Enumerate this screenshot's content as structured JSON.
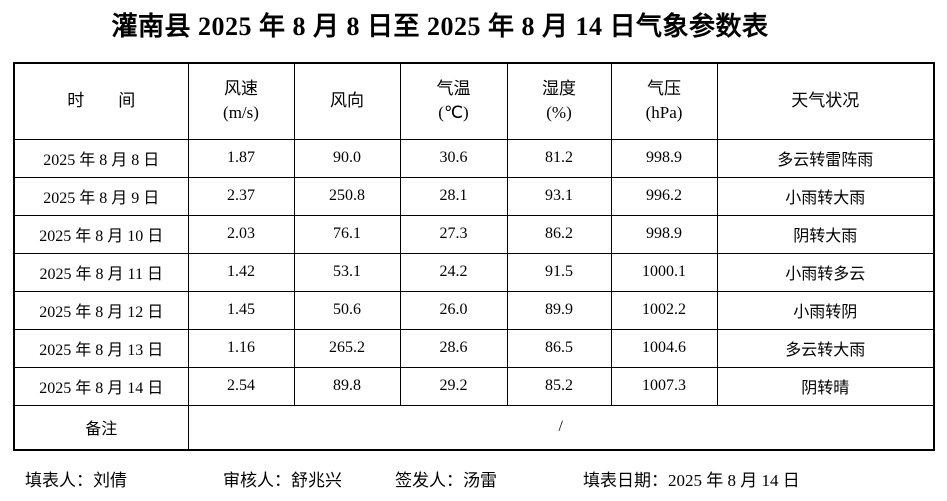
{
  "title": "灌南县 2025 年 8 月 8 日至 2025 年 8 月 14 日气象参数表",
  "table": {
    "columns": [
      {
        "key": "time",
        "line1": "时　　间",
        "line2": ""
      },
      {
        "key": "wind-speed",
        "line1": "风速",
        "line2": "(m/s)"
      },
      {
        "key": "wind-dir",
        "line1": "风向",
        "line2": ""
      },
      {
        "key": "temp",
        "line1": "气温",
        "line2": "(℃)"
      },
      {
        "key": "humidity",
        "line1": "湿度",
        "line2": "(%)"
      },
      {
        "key": "pressure",
        "line1": "气压",
        "line2": "(hPa)"
      },
      {
        "key": "weather",
        "line1": "天气状况",
        "line2": ""
      }
    ],
    "rows": [
      {
        "date": "2025 年 8 月 8 日",
        "wind_speed": "1.87",
        "wind_dir": "90.0",
        "temp": "30.6",
        "humidity": "81.2",
        "pressure": "998.9",
        "weather": "多云转雷阵雨"
      },
      {
        "date": "2025 年 8 月 9 日",
        "wind_speed": "2.37",
        "wind_dir": "250.8",
        "temp": "28.1",
        "humidity": "93.1",
        "pressure": "996.2",
        "weather": "小雨转大雨"
      },
      {
        "date": "2025 年 8 月 10 日",
        "wind_speed": "2.03",
        "wind_dir": "76.1",
        "temp": "27.3",
        "humidity": "86.2",
        "pressure": "998.9",
        "weather": "阴转大雨"
      },
      {
        "date": "2025 年 8 月 11 日",
        "wind_speed": "1.42",
        "wind_dir": "53.1",
        "temp": "24.2",
        "humidity": "91.5",
        "pressure": "1000.1",
        "weather": "小雨转多云"
      },
      {
        "date": "2025 年 8 月 12 日",
        "wind_speed": "1.45",
        "wind_dir": "50.6",
        "temp": "26.0",
        "humidity": "89.9",
        "pressure": "1002.2",
        "weather": "小雨转阴"
      },
      {
        "date": "2025 年 8 月 13 日",
        "wind_speed": "1.16",
        "wind_dir": "265.2",
        "temp": "28.6",
        "humidity": "86.5",
        "pressure": "1004.6",
        "weather": "多云转大雨"
      },
      {
        "date": "2025 年 8 月 14 日",
        "wind_speed": "2.54",
        "wind_dir": "89.8",
        "temp": "29.2",
        "humidity": "85.2",
        "pressure": "1007.3",
        "weather": "阴转晴"
      }
    ],
    "remark_label": "备注",
    "remark_value": "/"
  },
  "footer": {
    "filled_by": "填表人：刘倩",
    "reviewed_by": "审核人：舒兆兴",
    "issued_by": "签发人：汤雷",
    "fill_date": "填表日期：2025 年 8 月 14 日"
  }
}
